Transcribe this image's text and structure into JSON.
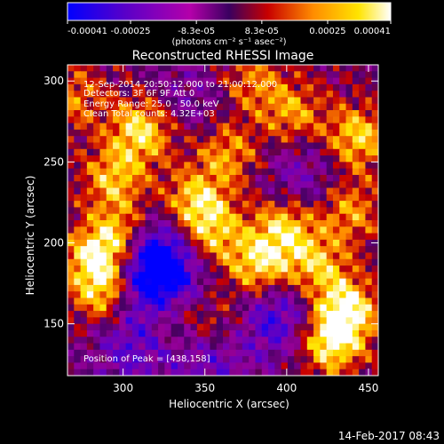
{
  "chart_data": {
    "type": "heatmap",
    "title": "Reconstructed RHESSI Image",
    "xlabel": "Heliocentric X (arcsec)",
    "ylabel": "Heliocentric Y (arcsec)",
    "xlim": [
      266,
      456
    ],
    "ylim": [
      118,
      310
    ],
    "x_ticks": [
      300,
      350,
      400,
      450
    ],
    "y_ticks": [
      150,
      200,
      250,
      300
    ],
    "colorbar": {
      "min": -0.00041,
      "max": 0.00041,
      "tick_values": [
        -0.00041,
        -0.00025,
        -8.3e-05,
        8.3e-05,
        0.00025,
        0.00041
      ],
      "tick_labels": [
        "-0.00041",
        "-0.00025",
        "-8.3e-05",
        "8.3e-05",
        "0.00025",
        "0.00041"
      ],
      "units": "(photons cm⁻² s⁻¹ asec⁻²)",
      "colors_negative": [
        "#0000ff",
        "#5a00c8",
        "#b400aa"
      ],
      "colors_positive": [
        "#5a0096",
        "#c80000",
        "#ff8c00",
        "#ffe400",
        "#ffffff"
      ]
    },
    "annotations": {
      "time": "12-Sep-2014 20:50:12.000 to 21:00:12.000",
      "detectors": "Detectors: 3F 6F 9F  Att 0",
      "energy": "Energy Range: 25.0 - 50.0 keV",
      "method": "Clean     Total counts: 4.32E+03",
      "peak": "Position of Peak = [438,158]"
    },
    "peak_position": [
      438,
      158
    ],
    "blobs_positive": [
      [
        300,
        205,
        0.8
      ],
      [
        284,
        190,
        0.9
      ],
      [
        290,
        168,
        0.8
      ],
      [
        312,
        270,
        0.9
      ],
      [
        295,
        240,
        0.7
      ],
      [
        345,
        225,
        0.8
      ],
      [
        365,
        255,
        0.6
      ],
      [
        355,
        205,
        0.7
      ],
      [
        385,
        185,
        0.9
      ],
      [
        400,
        210,
        0.8
      ],
      [
        420,
        185,
        0.7
      ],
      [
        438,
        158,
        1.0
      ],
      [
        428,
        138,
        0.9
      ],
      [
        445,
        265,
        0.8
      ],
      [
        405,
        280,
        0.6
      ],
      [
        330,
        155,
        0.6
      ],
      [
        360,
        150,
        0.5
      ],
      [
        380,
        300,
        0.5
      ],
      [
        440,
        220,
        0.6
      ],
      [
        270,
        290,
        0.5
      ]
    ],
    "blobs_negative": [
      [
        320,
        192,
        1.0
      ],
      [
        322,
        170,
        0.8
      ],
      [
        305,
        135,
        0.5
      ],
      [
        395,
        155,
        0.7
      ],
      [
        410,
        240,
        0.4
      ],
      [
        355,
        130,
        0.5
      ],
      [
        340,
        290,
        0.3
      ]
    ]
  },
  "footer": {
    "date": "14-Feb-2017 08:43"
  }
}
